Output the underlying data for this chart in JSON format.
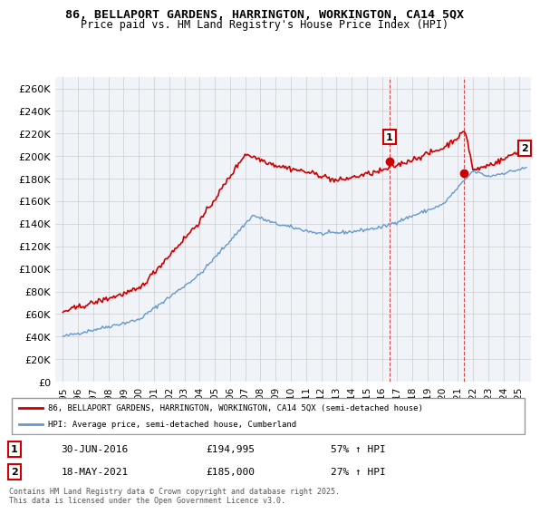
{
  "title1": "86, BELLAPORT GARDENS, HARRINGTON, WORKINGTON, CA14 5QX",
  "title2": "Price paid vs. HM Land Registry's House Price Index (HPI)",
  "ylabel": "",
  "background_color": "#ffffff",
  "grid_color": "#cccccc",
  "plot_bg": "#f0f0f0",
  "sale1_date": "30-JUN-2016",
  "sale1_price": 194995,
  "sale1_label": "57% ↑ HPI",
  "sale1_marker_x": 2016.5,
  "sale2_date": "18-MAY-2021",
  "sale2_price": 185000,
  "sale2_label": "27% ↑ HPI",
  "sale2_marker_x": 2021.38,
  "legend_line1": "86, BELLAPORT GARDENS, HARRINGTON, WORKINGTON, CA14 5QX (semi-detached house)",
  "legend_line2": "HPI: Average price, semi-detached house, Cumberland",
  "footer": "Contains HM Land Registry data © Crown copyright and database right 2025.\nThis data is licensed under the Open Government Licence v3.0.",
  "price_color": "#cc0000",
  "hpi_color": "#6699cc",
  "marker1_color": "#cc0000",
  "marker2_color": "#cc0000",
  "ylim": [
    0,
    270000
  ],
  "yticks": [
    0,
    20000,
    40000,
    60000,
    80000,
    100000,
    120000,
    140000,
    160000,
    180000,
    200000,
    220000,
    240000,
    260000
  ],
  "xlim_start": 1994.5,
  "xlim_end": 2025.8
}
